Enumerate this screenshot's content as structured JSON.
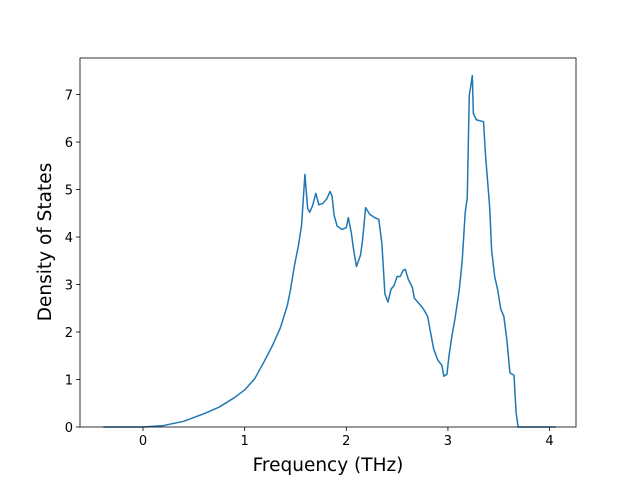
{
  "chart_data": {
    "type": "line",
    "xlabel": "Frequency (THz)",
    "ylabel": "Density of States",
    "xlim": [
      -0.62,
      4.26
    ],
    "ylim": [
      0,
      7.77
    ],
    "xticks": [
      0,
      1,
      2,
      3,
      4
    ],
    "yticks": [
      0,
      1,
      2,
      3,
      4,
      5,
      6,
      7
    ],
    "series": [
      {
        "color": "#1f77b4",
        "x": [
          -0.39,
          0,
          0.2,
          0.4,
          0.6,
          0.75,
          0.9,
          1.0,
          1.1,
          1.19,
          1.27,
          1.35,
          1.42,
          1.45,
          1.49,
          1.53,
          1.56,
          1.593,
          1.62,
          1.64,
          1.67,
          1.7,
          1.73,
          1.77,
          1.81,
          1.84,
          1.86,
          1.88,
          1.91,
          1.96,
          2.0,
          2.02,
          2.05,
          2.07,
          2.1,
          2.14,
          2.16,
          2.19,
          2.23,
          2.28,
          2.32,
          2.35,
          2.38,
          2.41,
          2.44,
          2.47,
          2.5,
          2.53,
          2.56,
          2.58,
          2.61,
          2.65,
          2.67,
          2.72,
          2.76,
          2.8,
          2.83,
          2.86,
          2.9,
          2.94,
          2.96,
          2.99,
          3.01,
          3.04,
          3.07,
          3.11,
          3.14,
          3.17,
          3.19,
          3.21,
          3.24,
          3.25,
          3.28,
          3.31,
          3.35,
          3.37,
          3.41,
          3.43,
          3.46,
          3.49,
          3.52,
          3.55,
          3.58,
          3.61,
          3.65,
          3.67,
          3.69,
          4.0,
          4.06
        ],
        "values": [
          0,
          0,
          0.03,
          0.12,
          0.28,
          0.42,
          0.62,
          0.78,
          1.02,
          1.37,
          1.7,
          2.08,
          2.56,
          2.88,
          3.4,
          3.83,
          4.25,
          5.32,
          4.6,
          4.52,
          4.67,
          4.92,
          4.68,
          4.71,
          4.81,
          4.96,
          4.86,
          4.46,
          4.23,
          4.16,
          4.2,
          4.41,
          4.08,
          3.76,
          3.38,
          3.62,
          3.93,
          4.62,
          4.48,
          4.41,
          4.37,
          3.87,
          2.8,
          2.63,
          2.9,
          2.98,
          3.17,
          3.17,
          3.3,
          3.32,
          3.11,
          2.94,
          2.71,
          2.59,
          2.48,
          2.33,
          1.98,
          1.64,
          1.41,
          1.3,
          1.07,
          1.11,
          1.49,
          1.93,
          2.29,
          2.86,
          3.49,
          4.52,
          4.83,
          6.98,
          7.4,
          6.6,
          6.47,
          6.45,
          6.43,
          5.72,
          4.65,
          3.72,
          3.17,
          2.88,
          2.48,
          2.33,
          1.83,
          1.14,
          1.09,
          0.32,
          0,
          0,
          0
        ]
      }
    ]
  }
}
